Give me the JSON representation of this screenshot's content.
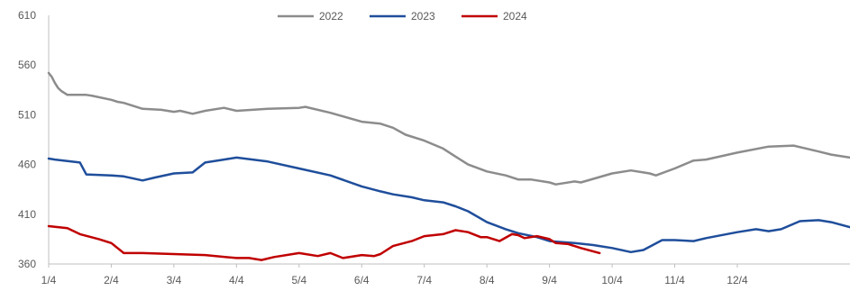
{
  "chart_data": {
    "type": "line",
    "title": "",
    "xlabel": "",
    "ylabel": "",
    "ylim": [
      360,
      610
    ],
    "y_ticks": [
      360,
      410,
      460,
      510,
      560,
      610
    ],
    "x_ticks": [
      "1/4",
      "2/4",
      "3/4",
      "4/4",
      "5/4",
      "6/4",
      "7/4",
      "8/4",
      "9/4",
      "10/4",
      "11/4",
      "12/4"
    ],
    "x_range_months": [
      0,
      12.8
    ],
    "grid": false,
    "legend_position": "top-center",
    "series": [
      {
        "name": "2022",
        "color": "#8c8c8c",
        "x": [
          0,
          0.05,
          0.1,
          0.15,
          0.2,
          0.3,
          0.6,
          0.7,
          1.0,
          1.1,
          1.2,
          1.25,
          1.5,
          1.8,
          2.0,
          2.1,
          2.3,
          2.5,
          2.8,
          3.0,
          3.5,
          4.0,
          4.1,
          4.5,
          5.0,
          5.3,
          5.5,
          5.7,
          6.0,
          6.3,
          6.5,
          6.7,
          7.0,
          7.3,
          7.5,
          7.7,
          8.0,
          8.1,
          8.4,
          8.5,
          9.0,
          9.3,
          9.5,
          9.6,
          9.7,
          10.0,
          10.3,
          10.5,
          11.0,
          11.5,
          11.9,
          12.3,
          12.5,
          12.8
        ],
        "values": [
          552,
          548,
          542,
          537,
          534,
          530,
          530,
          529,
          525,
          523,
          522,
          521,
          516,
          515,
          513,
          514,
          511,
          514,
          517,
          514,
          516,
          517,
          518,
          512,
          503,
          501,
          497,
          490,
          484,
          476,
          468,
          460,
          453,
          449,
          445,
          445,
          442,
          440,
          443,
          442,
          451,
          454,
          452,
          451,
          449,
          456,
          464,
          465,
          472,
          478,
          479,
          473,
          470,
          467
        ]
      },
      {
        "name": "2023",
        "color": "#1f4e9b",
        "x": [
          0,
          0.1,
          0.5,
          0.6,
          1.0,
          1.2,
          1.5,
          1.7,
          2.0,
          2.3,
          2.5,
          2.8,
          3.0,
          3.5,
          4.0,
          4.5,
          5.0,
          5.3,
          5.5,
          5.8,
          6.0,
          6.3,
          6.5,
          6.7,
          7.0,
          7.3,
          7.5,
          7.8,
          8.0,
          8.2,
          8.4,
          8.7,
          8.8,
          9.0,
          9.3,
          9.5,
          9.8,
          10.0,
          10.3,
          10.5,
          11.0,
          11.3,
          11.5,
          11.7,
          12.0,
          12.3,
          12.5,
          12.8
        ],
        "values": [
          466,
          465,
          462,
          450,
          449,
          448,
          444,
          447,
          451,
          452,
          462,
          465,
          467,
          463,
          456,
          449,
          438,
          433,
          430,
          427,
          424,
          422,
          418,
          413,
          402,
          395,
          391,
          387,
          383,
          382,
          381,
          379,
          378,
          376,
          372,
          374,
          384,
          384,
          383,
          386,
          392,
          395,
          393,
          395,
          403,
          404,
          402,
          397
        ]
      },
      {
        "name": "2024",
        "color": "#c00000",
        "x": [
          0,
          0.3,
          0.5,
          0.8,
          1.0,
          1.1,
          1.2,
          1.5,
          2.0,
          2.5,
          3.0,
          3.2,
          3.4,
          3.6,
          4.0,
          4.3,
          4.5,
          4.7,
          5.0,
          5.2,
          5.3,
          5.5,
          5.8,
          6.0,
          6.3,
          6.5,
          6.7,
          6.9,
          7.0,
          7.2,
          7.4,
          7.5,
          7.6,
          7.8,
          8.0,
          8.1,
          8.3,
          8.5,
          8.8
        ],
        "values": [
          398,
          396,
          390,
          385,
          381,
          376,
          371,
          371,
          370,
          369,
          366,
          366,
          364,
          367,
          371,
          368,
          371,
          366,
          369,
          368,
          370,
          378,
          383,
          388,
          390,
          394,
          392,
          387,
          387,
          383,
          390,
          389,
          386,
          388,
          385,
          381,
          380,
          376,
          371
        ]
      }
    ]
  }
}
